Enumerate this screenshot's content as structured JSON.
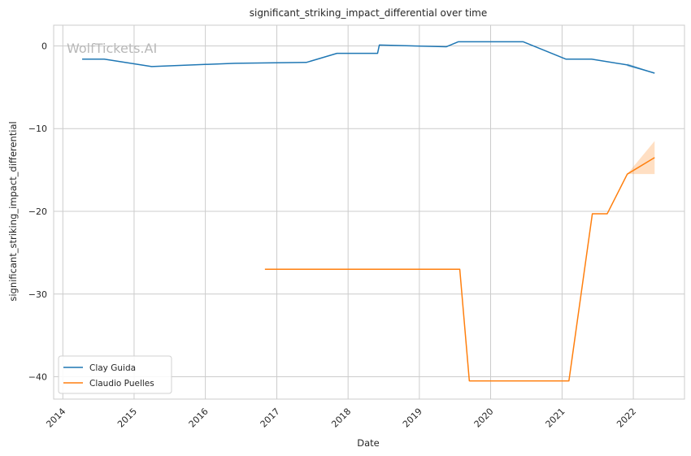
{
  "chart_data": {
    "type": "line",
    "title": "significant_striking_impact_differential over time",
    "xlabel": "Date",
    "ylabel": "significant_striking_impact_differential",
    "watermark": "WolfTickets.AI",
    "x_ticks": [
      "2014",
      "2015",
      "2016",
      "2017",
      "2018",
      "2019",
      "2020",
      "2021",
      "2022"
    ],
    "y_ticks": [
      "0",
      "−10",
      "−20",
      "−30",
      "−40"
    ],
    "y_tick_values": [
      0,
      -10,
      -20,
      -30,
      -40
    ],
    "xlim": [
      "2013-11-15",
      "2022-09-20"
    ],
    "ylim": [
      -42.7,
      2.5
    ],
    "grid": true,
    "legend_position": "lower-left",
    "series": [
      {
        "name": "Clay Guida",
        "color": "#1f77b4",
        "points": [
          [
            "2014-04-10",
            -1.6
          ],
          [
            "2014-08-01",
            -1.6
          ],
          [
            "2015-04-01",
            -2.5
          ],
          [
            "2016-06-01",
            -2.1
          ],
          [
            "2017-06-01",
            -2.0
          ],
          [
            "2017-11-05",
            -0.9
          ],
          [
            "2018-06-01",
            -0.9
          ],
          [
            "2018-06-10",
            0.1
          ],
          [
            "2019-05-20",
            -0.1
          ],
          [
            "2019-07-20",
            0.5
          ],
          [
            "2020-06-15",
            0.5
          ],
          [
            "2021-01-20",
            -1.6
          ],
          [
            "2021-06-01",
            -1.6
          ],
          [
            "2021-12-01",
            -2.3
          ],
          [
            "2022-04-20",
            -3.3
          ]
        ],
        "band": [
          [
            "2021-12-01",
            -2.1,
            -2.5
          ],
          [
            "2022-04-20",
            -3.3,
            -3.3
          ]
        ]
      },
      {
        "name": "Claudio Puelles",
        "color": "#ff7f0e",
        "points": [
          [
            "2016-11-01",
            -27.0
          ],
          [
            "2019-07-27",
            -27.0
          ],
          [
            "2019-09-14",
            -40.5
          ],
          [
            "2021-02-05",
            -40.5
          ],
          [
            "2021-06-05",
            -20.3
          ],
          [
            "2021-08-20",
            -20.3
          ],
          [
            "2021-12-01",
            -15.5
          ],
          [
            "2022-04-20",
            -13.5
          ]
        ],
        "band": [
          [
            "2021-12-01",
            -15.5,
            -15.5
          ],
          [
            "2022-04-20",
            -11.5,
            -15.5
          ]
        ]
      }
    ]
  }
}
